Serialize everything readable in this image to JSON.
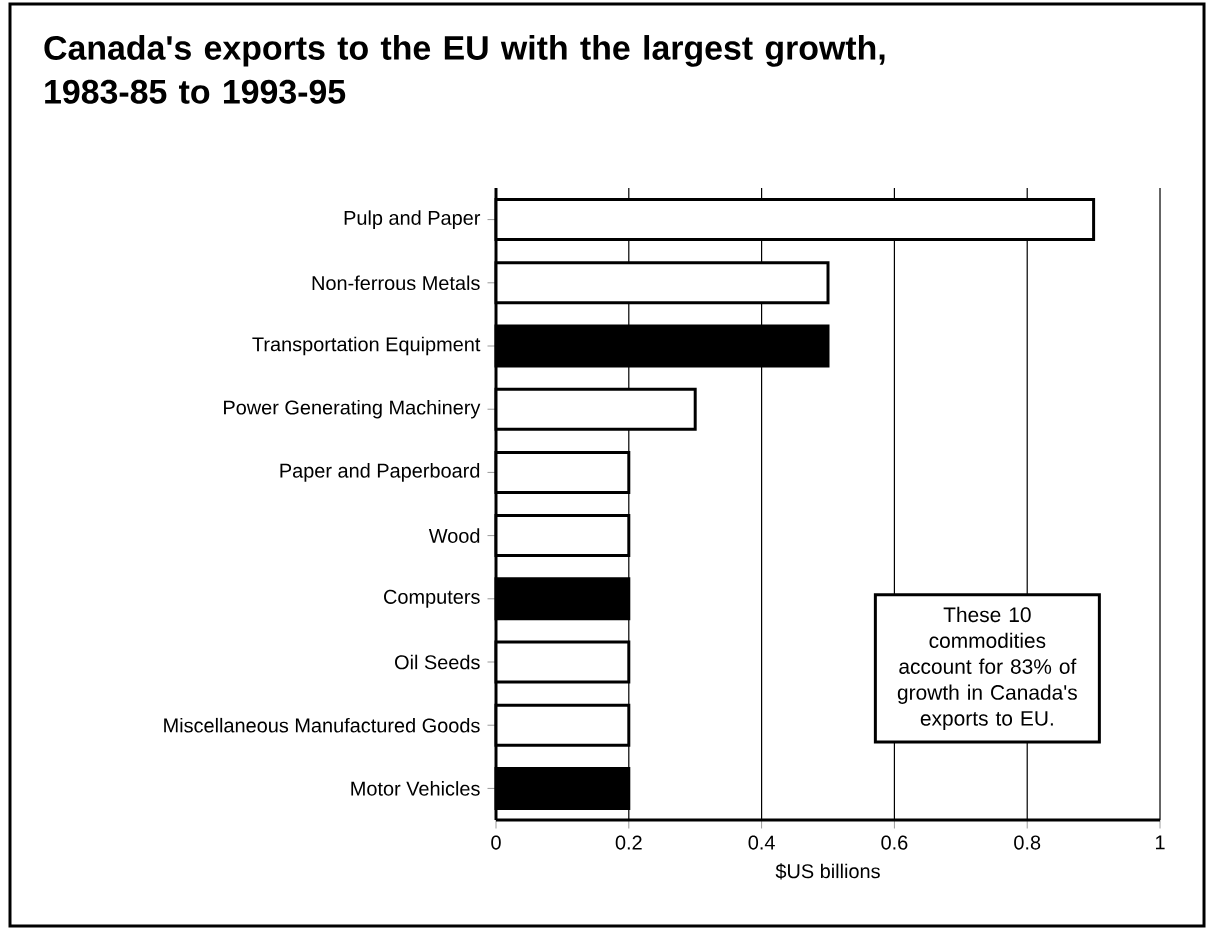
{
  "chart_data": {
    "type": "bar",
    "orientation": "horizontal",
    "title": "Canada's exports to the EU with the largest growth, 1983-85 to 1993-95",
    "categories": [
      "Pulp and Paper",
      "Non-ferrous Metals",
      "Transportation Equipment",
      "Power Generating Machinery",
      "Paper and Paperboard",
      "Wood",
      "Computers",
      "Oil Seeds",
      "Miscellaneous Manufactured Goods",
      "Motor Vehicles"
    ],
    "values": [
      0.9,
      0.5,
      0.5,
      0.3,
      0.2,
      0.2,
      0.2,
      0.2,
      0.2,
      0.2
    ],
    "colors": [
      "#ffffff",
      "#ffffff",
      "#000000",
      "#ffffff",
      "#ffffff",
      "#ffffff",
      "#000000",
      "#ffffff",
      "#ffffff",
      "#000000"
    ],
    "xlabel": "$US billions",
    "xlim": [
      0,
      1
    ],
    "xticks": [
      0,
      0.2,
      0.4,
      0.6,
      0.8,
      1
    ],
    "grid": "x",
    "annotations": [
      "These 10 commodities account for 83% of growth in Canada's exports to EU."
    ]
  }
}
